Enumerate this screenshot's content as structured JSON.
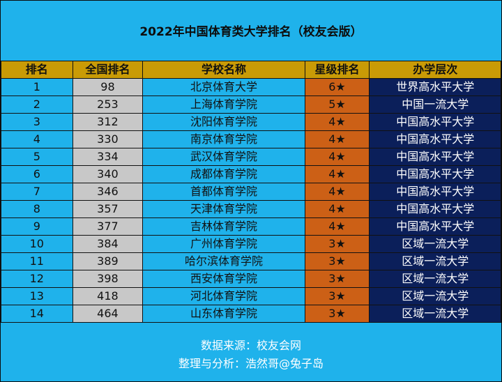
{
  "title": "2022年中国体育类大学排名（校友会版）",
  "columns": [
    "排名",
    "全国排名",
    "学校名称",
    "星级排名",
    "办学层次"
  ],
  "rows": [
    {
      "rank": "1",
      "national": "98",
      "name": "北京体育大学",
      "stars": "6★",
      "level": "世界高水平大学"
    },
    {
      "rank": "2",
      "national": "253",
      "name": "上海体育学院",
      "stars": "5★",
      "level": "中国一流大学"
    },
    {
      "rank": "3",
      "national": "312",
      "name": "沈阳体育学院",
      "stars": "4★",
      "level": "中国高水平大学"
    },
    {
      "rank": "4",
      "national": "330",
      "name": "南京体育学院",
      "stars": "4★",
      "level": "中国高水平大学"
    },
    {
      "rank": "5",
      "national": "334",
      "name": "武汉体育学院",
      "stars": "4★",
      "level": "中国高水平大学"
    },
    {
      "rank": "6",
      "national": "340",
      "name": "成都体育学院",
      "stars": "4★",
      "level": "中国高水平大学"
    },
    {
      "rank": "7",
      "national": "346",
      "name": "首都体育学院",
      "stars": "4★",
      "level": "中国高水平大学"
    },
    {
      "rank": "8",
      "national": "357",
      "name": "天津体育学院",
      "stars": "4★",
      "level": "中国高水平大学"
    },
    {
      "rank": "9",
      "national": "377",
      "name": "吉林体育学院",
      "stars": "4★",
      "level": "中国高水平大学"
    },
    {
      "rank": "10",
      "national": "384",
      "name": "广州体育学院",
      "stars": "3★",
      "level": "区域一流大学"
    },
    {
      "rank": "11",
      "national": "389",
      "name": "哈尔滨体育学院",
      "stars": "3★",
      "level": "区域一流大学"
    },
    {
      "rank": "12",
      "national": "398",
      "name": "西安体育学院",
      "stars": "3★",
      "level": "区域一流大学"
    },
    {
      "rank": "13",
      "national": "418",
      "name": "河北体育学院",
      "stars": "3★",
      "level": "区域一流大学"
    },
    {
      "rank": "14",
      "national": "464",
      "name": "山东体育学院",
      "stars": "3★",
      "level": "区域一流大学"
    }
  ],
  "footer": {
    "source": "数据来源：校友会网",
    "author": "整理与分析：浩然哥@兔子岛"
  },
  "colors": {
    "background": "#1fb2eb",
    "header": "#c99b06",
    "national_column": "#c8c8c8",
    "star_column": "#cc6016",
    "level_column": "#0b1f5a"
  }
}
